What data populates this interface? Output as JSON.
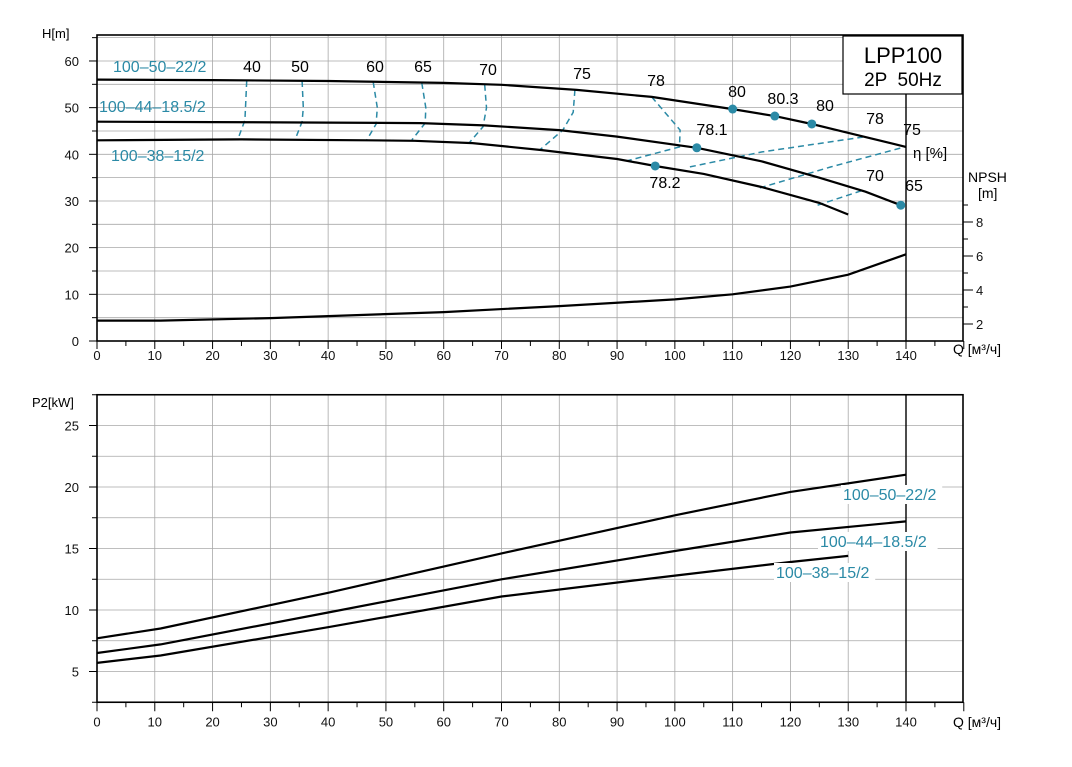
{
  "chart_data": [
    {
      "type": "line",
      "title": "LPP100",
      "subtitle": "2P  50Hz",
      "xlabel": "Q [м³/ч]",
      "ylabel": "H[m]",
      "y2label_line1": "NPSH",
      "y2label_line2": "[m]",
      "eta_label": "η [%]",
      "xlim": [
        0,
        150
      ],
      "ylim": [
        0,
        65.5
      ],
      "y2lim": [
        1,
        20
      ],
      "xticks": [
        0,
        10,
        20,
        30,
        40,
        50,
        60,
        70,
        80,
        90,
        100,
        110,
        120,
        130,
        140
      ],
      "yticks": [
        0,
        10,
        20,
        30,
        40,
        50,
        60
      ],
      "y2ticks": [
        2,
        4,
        6,
        8
      ],
      "grid": true,
      "colors": {
        "curve": "#000000",
        "efficiency": "#2b8aa6"
      },
      "series": [
        {
          "name": "100–50–22/2",
          "points": [
            [
              0,
              56
            ],
            [
              20,
              55.9
            ],
            [
              40,
              55.7
            ],
            [
              60,
              55.3
            ],
            [
              70,
              54.9
            ],
            [
              83,
              53.8
            ],
            [
              96,
              52.3
            ],
            [
              110,
              49.7
            ],
            [
              117.3,
              48.2
            ],
            [
              123.7,
              46.5
            ],
            [
              132,
              44
            ],
            [
              140,
              41.6
            ]
          ]
        },
        {
          "name": "100–44–18.5/2",
          "points": [
            [
              0,
              47
            ],
            [
              20,
              46.9
            ],
            [
              40,
              46.8
            ],
            [
              56,
              46.7
            ],
            [
              67,
              46.2
            ],
            [
              80,
              45.2
            ],
            [
              90,
              43.8
            ],
            [
              103.8,
              41.4
            ],
            [
              115,
              38.5
            ],
            [
              125,
              35
            ],
            [
              133,
              32
            ],
            [
              139.1,
              29.1
            ]
          ]
        },
        {
          "name": "100–38–15/2",
          "points": [
            [
              0,
              43
            ],
            [
              25,
              43.2
            ],
            [
              47,
              43
            ],
            [
              55,
              42.9
            ],
            [
              65,
              42.4
            ],
            [
              77,
              40.9
            ],
            [
              90,
              39
            ],
            [
              96.6,
              37.5
            ],
            [
              105,
              35.8
            ],
            [
              115,
              33
            ],
            [
              125,
              29.6
            ],
            [
              130,
              27.1
            ]
          ]
        }
      ],
      "npsh": {
        "points": [
          [
            0,
            2.2
          ],
          [
            11,
            2.2
          ],
          [
            30,
            2.35
          ],
          [
            60,
            2.7
          ],
          [
            80,
            3.05
          ],
          [
            100,
            3.45
          ],
          [
            110,
            3.75
          ],
          [
            120,
            4.2
          ],
          [
            130,
            4.9
          ],
          [
            140,
            6.1
          ]
        ]
      },
      "efficiency_lines": [
        {
          "eta": "40",
          "points": [
            [
              25.9,
              55.7
            ],
            [
              25.7,
              50
            ],
            [
              25.6,
              47.3
            ],
            [
              24.4,
              43.3
            ]
          ]
        },
        {
          "eta": "50",
          "points": [
            [
              35.5,
              55.7
            ],
            [
              35.7,
              50
            ],
            [
              35.5,
              47
            ],
            [
              34.3,
              43.2
            ]
          ]
        },
        {
          "eta": "60",
          "points": [
            [
              47.8,
              55.5
            ],
            [
              48.5,
              50
            ],
            [
              48.3,
              46.5
            ],
            [
              46.7,
              43.1
            ]
          ]
        },
        {
          "eta": "65",
          "points": [
            [
              56.2,
              55.3
            ],
            [
              56.9,
              50
            ],
            [
              56.8,
              46.7
            ],
            [
              54.5,
              43.1
            ]
          ]
        },
        {
          "eta": "70",
          "points": [
            [
              67.1,
              54.9
            ],
            [
              67.4,
              50
            ],
            [
              66.8,
              45.9
            ],
            [
              64.5,
              42.6
            ]
          ]
        },
        {
          "eta": "75",
          "points": [
            [
              82.7,
              53.8
            ],
            [
              82.4,
              49
            ],
            [
              80.6,
              45.2
            ],
            [
              76.6,
              40.9
            ]
          ]
        },
        {
          "eta": "78",
          "points": [
            [
              96,
              52.3
            ],
            [
              100.9,
              45.2
            ],
            [
              100.8,
              41.6
            ],
            [
              91.7,
              38.6
            ]
          ]
        },
        {
          "eta": "78",
          "points": [
            [
              102.6,
              37.3
            ],
            [
              115,
              40.5
            ],
            [
              132.5,
              43.7
            ]
          ]
        },
        {
          "eta": "75",
          "points": [
            [
              114.7,
              32.8
            ],
            [
              127,
              37.3
            ],
            [
              139.8,
              41.6
            ]
          ]
        },
        {
          "eta": "70",
          "points": [
            [
              124.7,
              29.1
            ],
            [
              132.5,
              32.3
            ]
          ]
        }
      ],
      "efficiency_points": [
        {
          "q": 110,
          "h": 49.7,
          "eta": "80"
        },
        {
          "q": 117.3,
          "h": 48.2,
          "eta": "80.3"
        },
        {
          "q": 123.7,
          "h": 46.5,
          "eta": "80"
        },
        {
          "q": 103.8,
          "h": 41.4,
          "eta": "78.1"
        },
        {
          "q": 96.6,
          "h": 37.5,
          "eta": "78.2"
        },
        {
          "q": 139.1,
          "h": 29.1,
          "eta": "65"
        }
      ]
    },
    {
      "type": "line",
      "xlabel": "Q [м³/ч]",
      "ylabel": "P2[kW]",
      "xlim": [
        0,
        150
      ],
      "ylim": [
        2.5,
        27.5
      ],
      "xticks": [
        0,
        10,
        20,
        30,
        40,
        50,
        60,
        70,
        80,
        90,
        100,
        110,
        120,
        130,
        140
      ],
      "yticks": [
        5,
        10,
        15,
        20,
        25
      ],
      "grid": true,
      "series": [
        {
          "name": "100–50–22/2",
          "points": [
            [
              0,
              7.7
            ],
            [
              11,
              8.5
            ],
            [
              40,
              11.4
            ],
            [
              70,
              14.6
            ],
            [
              100,
              17.7
            ],
            [
              120,
              19.6
            ],
            [
              140,
              21
            ]
          ]
        },
        {
          "name": "100–44–18.5/2",
          "points": [
            [
              0,
              6.5
            ],
            [
              11,
              7.2
            ],
            [
              40,
              9.8
            ],
            [
              70,
              12.5
            ],
            [
              100,
              14.8
            ],
            [
              120,
              16.3
            ],
            [
              140,
              17.2
            ]
          ]
        },
        {
          "name": "100–38–15/2",
          "points": [
            [
              0,
              5.7
            ],
            [
              11,
              6.3
            ],
            [
              40,
              8.6
            ],
            [
              70,
              11.1
            ],
            [
              100,
              12.8
            ],
            [
              120,
              13.9
            ],
            [
              130,
              14.4
            ]
          ]
        }
      ]
    }
  ]
}
